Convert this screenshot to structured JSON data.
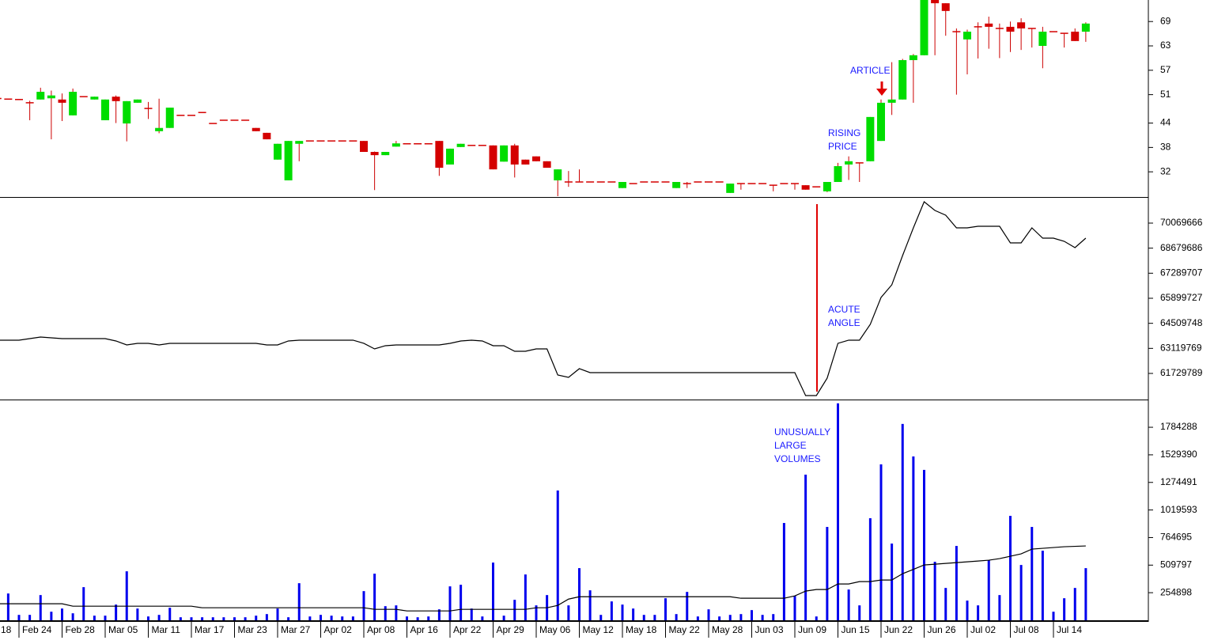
{
  "chart_data": [
    {
      "type": "candlestick",
      "up_color": "#00dd00",
      "down_color": "#d40000",
      "wick_color": "#cc0000",
      "ylim": [
        25.8,
        74.3
      ],
      "yticks": [
        32,
        38,
        44,
        51,
        57,
        63,
        69
      ],
      "annotations": [
        [
          "ARTICLE"
        ],
        [
          "RISING",
          "PRICE"
        ]
      ],
      "open": [
        null,
        null,
        50.2,
        49.9,
        49.8,
        49,
        49.8,
        50.1,
        49.8,
        45.9,
        50.5,
        49.8,
        44.7,
        50.5,
        43.9,
        49,
        47.6,
        42,
        42.8,
        45.9,
        45.9,
        46.6,
        43.9,
        44.7,
        44.7,
        44.7,
        42.8,
        41.6,
        35,
        29.9,
        38.9,
        39.6,
        39.6,
        39.6,
        39.6,
        39.6,
        39.6,
        36.9,
        36.1,
        38.2,
        38.9,
        38.9,
        38.9,
        39.6,
        33.8,
        38.1,
        38.5,
        38.5,
        38.5,
        34.5,
        38.5,
        35,
        35.8,
        34.6,
        29.9,
        29.5,
        29.5,
        29.5,
        29.5,
        29.5,
        28,
        29.1,
        29.5,
        29.5,
        29.5,
        28,
        29.1,
        29.5,
        29.5,
        29.5,
        26.8,
        29.1,
        29.1,
        29.1,
        28.7,
        29.1,
        29.1,
        28.7,
        28.3,
        27.2,
        29.5,
        33.8,
        34.2,
        34.6,
        39.6,
        49,
        49.8,
        59.5,
        60.7,
        74.3,
        73.5,
        66.5,
        64.6,
        67.7,
        68.5,
        67.3,
        67.7,
        68.8,
        67.3,
        63,
        66.5,
        66.1,
        66.5,
        66.5
      ],
      "high": [
        null,
        null,
        52.4,
        49.9,
        49.8,
        49.5,
        52.7,
        52,
        51.3,
        52.5,
        50.5,
        50.5,
        49.8,
        50.8,
        49.4,
        49.8,
        49.2,
        50,
        47.8,
        45.9,
        45.9,
        46.6,
        43.9,
        44.7,
        44.7,
        44.7,
        42.8,
        41.6,
        38.9,
        39.6,
        39.6,
        39.6,
        39.6,
        39.6,
        39.6,
        39.6,
        39.6,
        37,
        36.9,
        39.6,
        38.9,
        38.9,
        38.9,
        39.6,
        37.7,
        38.9,
        38.5,
        38.5,
        38.5,
        38.5,
        38.9,
        35,
        35.8,
        34.6,
        32.6,
        32.2,
        32.6,
        29.5,
        29.5,
        29.5,
        29.5,
        29.1,
        29.5,
        29.5,
        29.5,
        29.5,
        29.5,
        29.5,
        29.5,
        29.5,
        29.1,
        29.1,
        29.1,
        29.1,
        28.7,
        29.1,
        29.1,
        28.7,
        28.3,
        29.5,
        34.2,
        35.8,
        34.2,
        45.5,
        49.8,
        59,
        59.8,
        61,
        74.3,
        74.3,
        73.5,
        67.3,
        67,
        68.8,
        70.2,
        68.5,
        69,
        69.8,
        67.3,
        67.7,
        66.5,
        66.1,
        67.3,
        68.8
      ],
      "low": [
        null,
        null,
        48,
        49.9,
        49.8,
        44.7,
        49.8,
        40,
        44.5,
        45.9,
        50.5,
        49.8,
        44.7,
        44,
        39.5,
        49,
        45,
        41.5,
        42.8,
        45.9,
        45.9,
        46.6,
        43.9,
        44.7,
        44.7,
        44.7,
        42,
        40,
        35,
        29.9,
        34.6,
        39.6,
        39.6,
        39.6,
        39.6,
        39.6,
        36.9,
        27.5,
        36.1,
        38.2,
        38.9,
        38.9,
        38.9,
        31,
        33.8,
        38.1,
        38.5,
        38.5,
        32.6,
        34.5,
        30.6,
        33.8,
        34.6,
        33,
        26,
        28.3,
        29.5,
        29.5,
        29.5,
        29.5,
        28,
        29.1,
        29.5,
        29.5,
        29.5,
        28,
        28,
        29.5,
        29.5,
        29.5,
        26.8,
        27.6,
        29.1,
        29.1,
        27.2,
        29.1,
        27.6,
        27.6,
        28.3,
        27,
        29.5,
        30,
        29.5,
        34.6,
        39.6,
        46,
        49.8,
        49,
        60.7,
        60.7,
        65.5,
        51,
        56,
        59.9,
        62.3,
        60,
        61.5,
        62,
        62.6,
        57.5,
        66.5,
        62.6,
        64.2,
        64
      ],
      "close": [
        null,
        null,
        49.9,
        49.9,
        49.8,
        49,
        51.7,
        50.8,
        49,
        51.7,
        50.5,
        50.5,
        49.8,
        49.4,
        49.4,
        49.8,
        47.6,
        42.8,
        47.8,
        45.9,
        45.9,
        46.6,
        43.9,
        44.7,
        44.7,
        44.7,
        42,
        40,
        38.9,
        39.6,
        39.6,
        39.6,
        39.6,
        39.6,
        39.6,
        39.6,
        36.9,
        36.1,
        36.9,
        39,
        38.9,
        38.9,
        38.9,
        33,
        37.7,
        38.9,
        38.5,
        38.5,
        32.6,
        38.5,
        33.8,
        33.8,
        34.6,
        33,
        32.6,
        29.5,
        29.5,
        29.5,
        29.5,
        29.5,
        29.5,
        29.1,
        29.5,
        29.5,
        29.5,
        29.5,
        29.1,
        29.5,
        29.5,
        29.5,
        29.1,
        29.1,
        29.1,
        29.1,
        28.7,
        29.1,
        29.1,
        27.6,
        28.3,
        29.5,
        33.4,
        34.6,
        34.2,
        45.5,
        49,
        49.8,
        59.5,
        60.7,
        74.3,
        73.5,
        71.6,
        66.5,
        66.5,
        67.7,
        67.7,
        67.3,
        66.5,
        67.3,
        67.3,
        66.5,
        66.5,
        66.1,
        64.2,
        68.5
      ]
    },
    {
      "type": "line",
      "color": "#000000",
      "ylim": [
        60281000,
        71474000
      ],
      "yticks": [
        70069666,
        68679686,
        67289707,
        65899727,
        64509748,
        63119769,
        61729789
      ],
      "annotations": [
        [
          "ACUTE",
          "ANGLE"
        ]
      ],
      "values": [
        63573800,
        63573800,
        63573800,
        63573800,
        63573800,
        63661600,
        63749400,
        63705500,
        63661600,
        63661600,
        63661600,
        63661600,
        63661600,
        63529900,
        63310400,
        63398200,
        63398200,
        63310400,
        63398200,
        63398200,
        63398200,
        63398200,
        63398200,
        63398200,
        63398200,
        63398200,
        63398200,
        63310400,
        63310400,
        63529900,
        63573800,
        63573800,
        63573800,
        63573800,
        63573800,
        63573800,
        63398200,
        63090900,
        63266500,
        63310400,
        63310400,
        63310400,
        63310400,
        63310400,
        63398200,
        63529900,
        63573800,
        63529900,
        63266500,
        63266500,
        62959300,
        62959300,
        63090900,
        63090900,
        61642700,
        61511000,
        61993800,
        61774400,
        61774400,
        61774400,
        61774400,
        61774400,
        61774400,
        61774400,
        61774400,
        61774400,
        61774400,
        61774400,
        61774400,
        61774400,
        61774400,
        61774400,
        61774400,
        61774400,
        61774400,
        61774400,
        61774400,
        60501500,
        60501500,
        61467100,
        63398200,
        63573800,
        63573800,
        64451600,
        65943900,
        66646100,
        68270000,
        69806200,
        71254550,
        70771760,
        70508420,
        69806200,
        69806200,
        69894000,
        69894000,
        69894000,
        68972300,
        68972300,
        69806200,
        69235600,
        69235600,
        69060000,
        68708900,
        69235600
      ]
    },
    {
      "type": "bar",
      "ylim": [
        0,
        2040700
      ],
      "yticks": [
        1784288,
        1529390,
        1274491,
        1019593,
        764695,
        509797,
        254898
      ],
      "annotations": [
        [
          "UNUSUALLY",
          "LARGE",
          "VOLUMES"
        ]
      ],
      "categories": [
        "18",
        null,
        null,
        null,
        "Feb 24",
        null,
        null,
        null,
        "Feb 28",
        null,
        null,
        null,
        "Mar 05",
        null,
        null,
        null,
        "Mar 11",
        null,
        null,
        null,
        "Mar 17",
        null,
        null,
        null,
        "Mar 23",
        null,
        null,
        null,
        "Mar 27",
        null,
        null,
        null,
        "Apr 02",
        null,
        null,
        null,
        "Apr 08",
        null,
        null,
        null,
        "Apr 16",
        null,
        null,
        null,
        "Apr 22",
        null,
        null,
        null,
        "Apr 29",
        null,
        null,
        null,
        "May 06",
        null,
        null,
        null,
        "May 12",
        null,
        null,
        null,
        "May 18",
        null,
        null,
        null,
        "May 22",
        null,
        null,
        null,
        "May 28",
        null,
        null,
        null,
        "Jun 03",
        null,
        null,
        null,
        "Jun 09",
        null,
        null,
        null,
        "Jun 15",
        null,
        null,
        null,
        "Jun 22",
        null,
        null,
        null,
        "Jun 26",
        null,
        null,
        null,
        "Jul 02",
        null,
        null,
        null,
        "Jul 08",
        null,
        null,
        null,
        "Jul 14",
        null,
        null,
        null
      ],
      "series": [
        {
          "color": "#0000ee",
          "values": [
            null,
            null,
            null,
            247600,
            49800,
            49800,
            232900,
            79100,
            108400,
            64500,
            306200,
            42500,
            42500,
            145000,
            452700,
            108400,
            35200,
            49800,
            115700,
            27800,
            27800,
            27800,
            27800,
            27800,
            27800,
            27800,
            42500,
            57100,
            108400,
            27800,
            342800,
            35200,
            49800,
            42500,
            35200,
            35200,
            269600,
            430700,
            130400,
            137700,
            35200,
            27800,
            35200,
            101100,
            313500,
            328200,
            108400,
            35200,
            533300,
            42500,
            189000,
            423400,
            137700,
            232900,
            1199800,
            137700,
            482000,
            276900,
            49800,
            174300,
            145000,
            108400,
            49800,
            49800,
            203600,
            57100,
            262200,
            35200,
            101100,
            35200,
            49800,
            57100,
            93800,
            49800,
            57100,
            899500,
            225600,
            1346300,
            35200,
            862900,
            2005600,
            284200,
            137700,
            943400,
            1441500,
            709100,
            1815100,
            1514800,
            1390300,
            540600,
            298900,
            687100,
            181700,
            137700,
            555200,
            232900,
            965400,
            511300,
            862900,
            643100,
            79100,
            203600,
            298900,
            482000
          ]
        },
        {
          "type": "line",
          "color": "#000000",
          "values": [
            152400,
            152400,
            152400,
            152400,
            152400,
            152400,
            152400,
            152400,
            152400,
            130400,
            130400,
            130400,
            130400,
            130400,
            130400,
            130400,
            130400,
            130400,
            130400,
            130400,
            130400,
            115700,
            115700,
            115700,
            115700,
            115700,
            115700,
            115700,
            115700,
            115700,
            115700,
            115700,
            115700,
            115700,
            115700,
            115700,
            115700,
            101100,
            101100,
            101100,
            86400,
            86400,
            86400,
            86400,
            86400,
            101100,
            101100,
            101100,
            101100,
            101100,
            101100,
            101100,
            115700,
            115700,
            137700,
            195700,
            217700,
            217700,
            217700,
            217700,
            217700,
            217700,
            217700,
            217700,
            217700,
            217700,
            217700,
            217700,
            217700,
            217700,
            217700,
            203600,
            203600,
            203600,
            203600,
            203600,
            225600,
            269600,
            284200,
            284200,
            335400,
            335400,
            357500,
            357500,
            372100,
            372100,
            430700,
            470000,
            511300,
            518600,
            525900,
            533300,
            540600,
            547900,
            555200,
            569900,
            591800,
            613700,
            657800,
            665100,
            672400,
            679700,
            683400,
            687100
          ]
        }
      ]
    }
  ]
}
